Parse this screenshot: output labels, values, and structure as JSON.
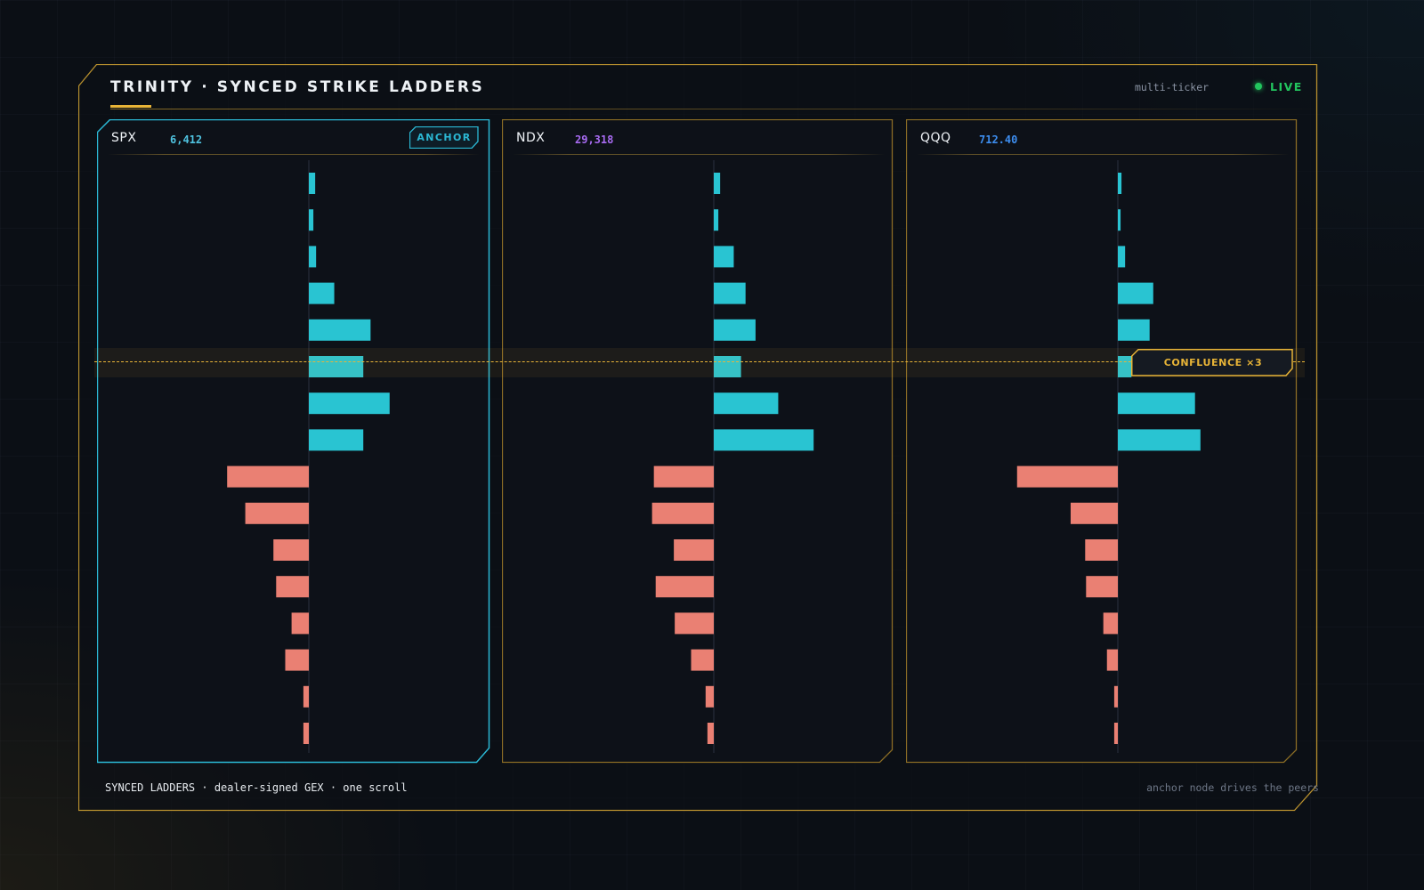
{
  "header": {
    "title": "TRINITY · SYNCED STRIKE LADDERS",
    "mode_label": "multi-ticker",
    "status_label": "LIVE"
  },
  "colors": {
    "accent_gold": "#e8b437",
    "anchor_cyan": "#2bb8d4",
    "positive_bar": "#29c4d2",
    "negative_bar": "#ea8073",
    "live_green": "#22c55e"
  },
  "panels": [
    {
      "ticker": "SPX",
      "price": "6,412",
      "price_color": "#4fc3e0",
      "is_anchor": true,
      "badge": "ANCHOR",
      "gex": [
        0.07,
        0.05,
        0.08,
        0.28,
        0.68,
        0.6,
        0.89,
        0.6,
        -0.9,
        -0.7,
        -0.39,
        -0.36,
        -0.19,
        -0.26,
        -0.06,
        -0.06
      ]
    },
    {
      "ticker": "NDX",
      "price": "29,318",
      "price_color": "#a86bf2",
      "is_anchor": false,
      "gex": [
        0.07,
        0.05,
        0.22,
        0.35,
        0.46,
        0.3,
        0.71,
        1.1,
        -0.66,
        -0.68,
        -0.44,
        -0.64,
        -0.43,
        -0.25,
        -0.09,
        -0.07
      ]
    },
    {
      "ticker": "QQQ",
      "price": "712.40",
      "price_color": "#3d8ef0",
      "is_anchor": false,
      "gex": [
        0.04,
        0.03,
        0.08,
        0.39,
        0.35,
        0.15,
        0.85,
        0.91,
        -1.11,
        -0.52,
        -0.36,
        -0.35,
        -0.16,
        -0.12,
        -0.04,
        -0.04
      ]
    }
  ],
  "confluence": {
    "label": "CONFLUENCE ×3",
    "row_index": 5
  },
  "footer": {
    "left": "SYNCED LADDERS · dealer-signed GEX · one scroll",
    "right": "anchor node drives the peers"
  }
}
